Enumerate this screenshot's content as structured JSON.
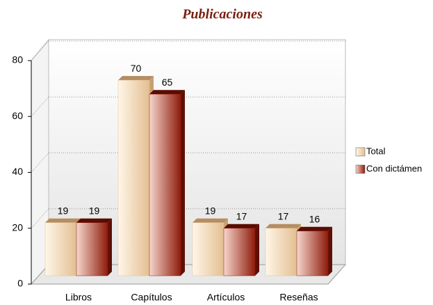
{
  "chart_data": {
    "type": "bar",
    "title": "Publicaciones",
    "categories": [
      "Libros",
      "Capítulos",
      "Artículos",
      "Reseñas"
    ],
    "series": [
      {
        "name": "Total",
        "color": "#e3bf92",
        "values": [
          19,
          70,
          19,
          17
        ]
      },
      {
        "name": "Con dictámen",
        "color": "#8e1c0c",
        "values": [
          19,
          65,
          17,
          16
        ]
      }
    ],
    "ylim": [
      0,
      80
    ],
    "yticks": [
      0,
      20,
      40,
      60,
      80
    ],
    "grid": true,
    "legend": "right"
  }
}
